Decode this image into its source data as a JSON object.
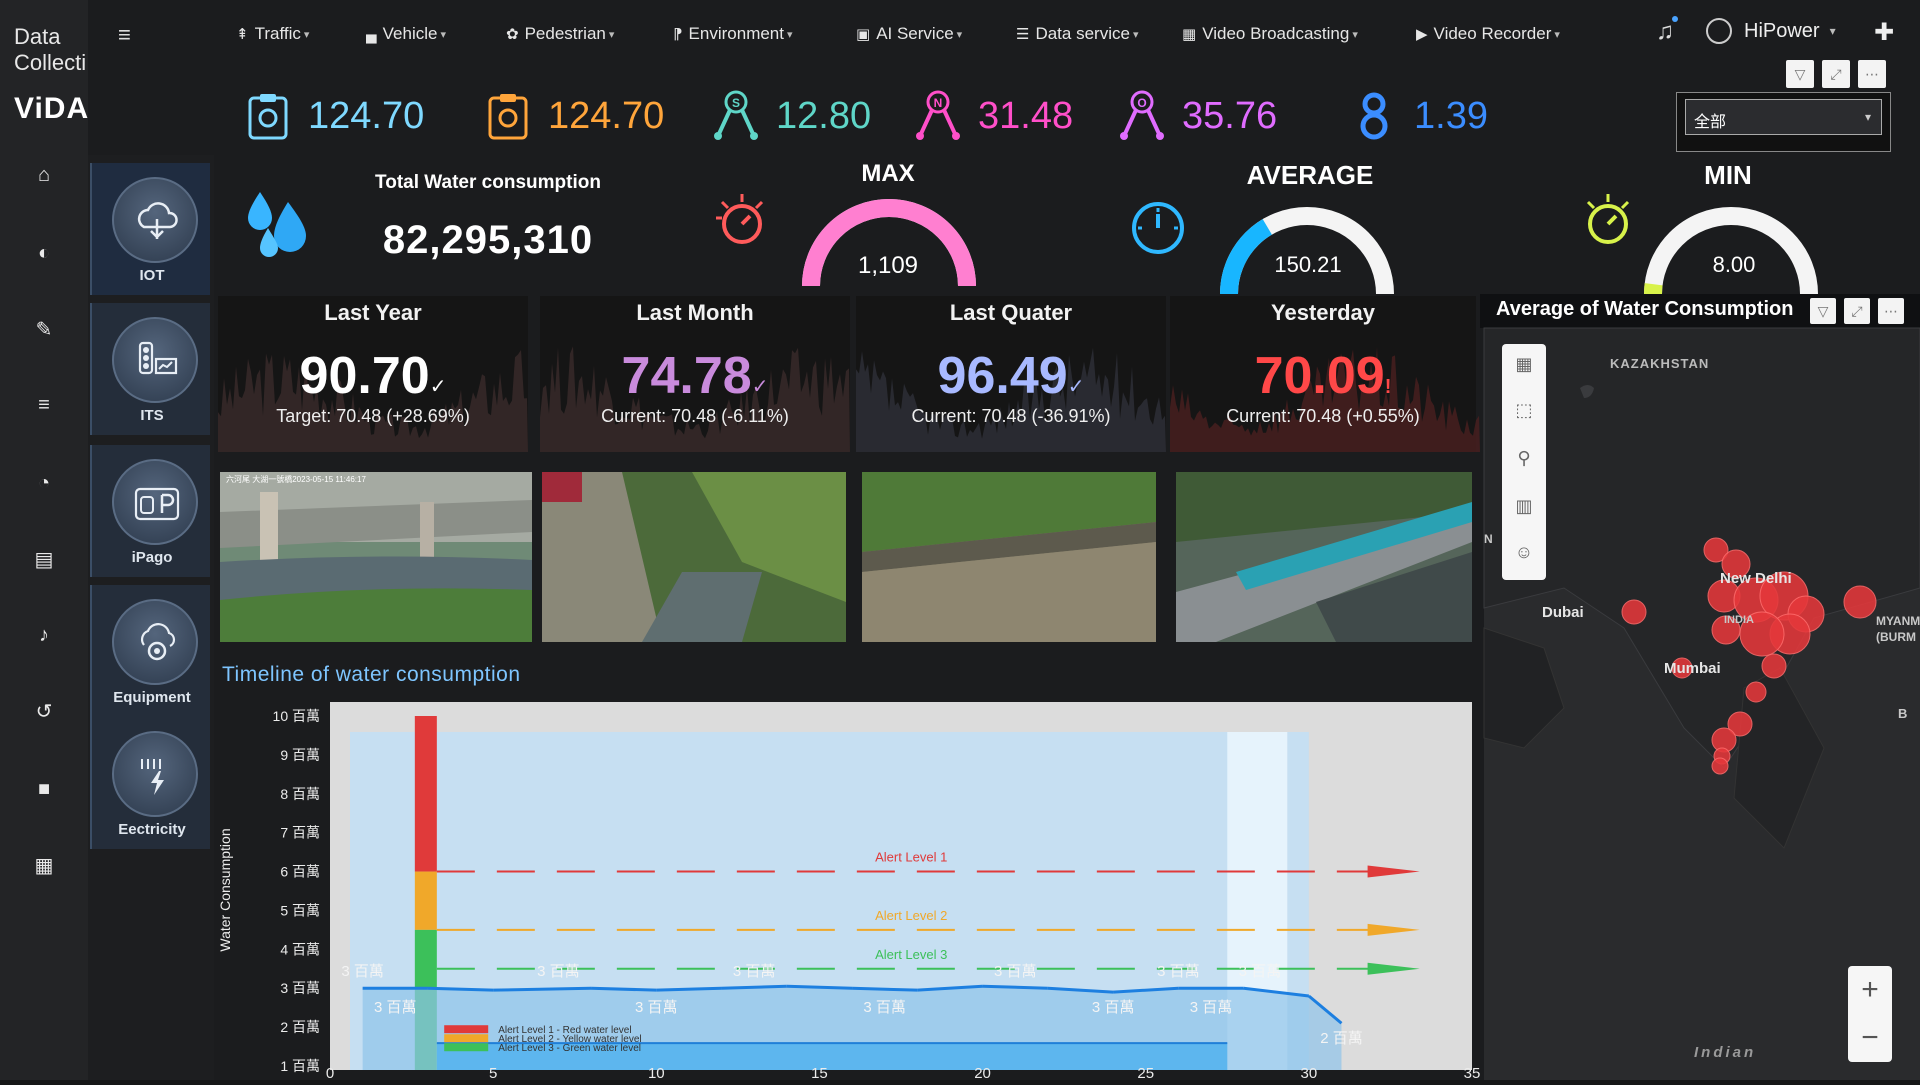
{
  "brand": {
    "line1": "Data",
    "line2": "Collecti",
    "name": "ViDA"
  },
  "nav": [
    {
      "label": "Traffic",
      "icon": "traffic-sign-icon"
    },
    {
      "label": "Vehicle",
      "icon": "car-icon"
    },
    {
      "label": "Pedestrian",
      "icon": "pedestrian-icon"
    },
    {
      "label": "Environment",
      "icon": "environment-icon"
    },
    {
      "label": "AI Service",
      "icon": "ai-chip-icon"
    },
    {
      "label": "Data service",
      "icon": "database-icon"
    },
    {
      "label": "Video Broadcasting",
      "icon": "grid-icon"
    },
    {
      "label": "Video Recorder",
      "icon": "video-icon"
    }
  ],
  "user": {
    "name": "HiPower"
  },
  "categories": [
    {
      "label": "IOT",
      "icon": "iot-cloud-icon"
    },
    {
      "label": "ITS",
      "icon": "traffic-light-icon"
    },
    {
      "label": "iPago",
      "icon": "parking-icon"
    },
    {
      "label": "Equipment",
      "icon": "equipment-gear-icon"
    },
    {
      "label": "Eectricity",
      "icon": "lightning-icon"
    }
  ],
  "metrics": [
    {
      "value": "124.70",
      "color": "#7fd9ff",
      "icon": "clipboard-icon"
    },
    {
      "value": "124.70",
      "color": "#ffa53b",
      "icon": "clipboard-icon"
    },
    {
      "value": "12.80",
      "color": "#5fd6c8",
      "icon": "node-s-icon",
      "letter": "S"
    },
    {
      "value": "31.48",
      "color": "#ff4fc9",
      "icon": "node-n-icon",
      "letter": "N"
    },
    {
      "value": "35.76",
      "color": "#e06cff",
      "icon": "node-o-icon",
      "letter": "O"
    },
    {
      "value": "1.39",
      "color": "#3b8dff",
      "icon": "node-8-icon",
      "letter": ""
    }
  ],
  "dropdown": {
    "value": "全部"
  },
  "total": {
    "title": "Total Water consumption",
    "value": "82,295,310"
  },
  "gauges": [
    {
      "title": "MAX",
      "value": "1,109",
      "fraction": 1.0,
      "color": "#ff7fd0"
    },
    {
      "title": "AVERAGE",
      "value": "150.21",
      "fraction": 0.33,
      "color": "#18b6ff"
    },
    {
      "title": "MIN",
      "value": "8.00",
      "fraction": 0.04,
      "color": "#d8f24a"
    }
  ],
  "stats": [
    {
      "head": "Last Year",
      "value": "90.70",
      "mark": "✓",
      "sub": "Target: 70.48 (+28.69%)",
      "color": "#ffffff"
    },
    {
      "head": "Last Month",
      "value": "74.78",
      "mark": "✓",
      "sub": "Current: 70.48 (-6.11%)",
      "color": "#c98bdc"
    },
    {
      "head": "Last Quater",
      "value": "96.49",
      "mark": "✓",
      "sub": "Current: 70.48 (-36.91%)",
      "color": "#a8b9ff"
    },
    {
      "head": "Yesterday",
      "value": "70.09",
      "mark": "!",
      "sub": "Current: 70.48 (+0.55%)",
      "color": "#ff4848"
    }
  ],
  "cameras": [
    {
      "name": "camera-feed-bridge-gauge",
      "stamp": "六河尾 大湖一號橋2023-05-15 11:46:17"
    },
    {
      "name": "camera-feed-channel-grass",
      "stamp": ""
    },
    {
      "name": "camera-feed-ditch-leaves",
      "stamp": ""
    },
    {
      "name": "camera-feed-blue-bridge",
      "stamp": ""
    }
  ],
  "timeline": {
    "title": "Timeline of water consumption",
    "ylabel": "Water Consumption",
    "yticks": [
      "10 百萬",
      "9 百萬",
      "8 百萬",
      "7 百萬",
      "6 百萬",
      "5 百萬",
      "4 百萬",
      "3 百萬",
      "2 百萬",
      "1 百萬"
    ],
    "xticks": [
      "0",
      "5",
      "10",
      "15",
      "20",
      "25",
      "30",
      "35"
    ],
    "alerts": [
      {
        "label": "Alert Level 1",
        "color": "#e03a3a"
      },
      {
        "label": "Alert Level 2",
        "color": "#f0a82a"
      },
      {
        "label": "Alert Level 3",
        "color": "#3cc05a"
      }
    ],
    "legend": [
      "Alert Level 1 - Red water level",
      "Alert Level 2 - Yellow water level",
      "Alert Level 3 - Green water level"
    ],
    "point_labels_upper": [
      "3 百萬",
      "3 百萬",
      "3 百萬",
      "3 百萬",
      "3 百萬",
      "3 百萬"
    ],
    "point_labels_lower": [
      "3 百萬",
      "3 百萬",
      "3 百萬",
      "3 百萬",
      "3 百萬",
      "2 百萬"
    ]
  },
  "chart_data": {
    "type": "line",
    "title": "Timeline of water consumption",
    "xlabel": "",
    "ylabel": "Water Consumption",
    "x": [
      1,
      3,
      5,
      8,
      10,
      12,
      14,
      16,
      18,
      20,
      22,
      24,
      26,
      28,
      30,
      31
    ],
    "series": [
      {
        "values": [
          3.0,
          3.0,
          2.95,
          3.0,
          2.95,
          3.0,
          3.05,
          3.0,
          2.95,
          3.05,
          3.0,
          2.9,
          3.0,
          3.0,
          2.8,
          2.1
        ]
      }
    ],
    "xlim": [
      0,
      35
    ],
    "ylim": [
      1,
      10
    ],
    "alert_levels": [
      6.0,
      4.5,
      3.5
    ]
  },
  "map": {
    "title": "Average of Water Consumption",
    "labels": [
      {
        "text": "KAZAKHSTAN"
      },
      {
        "text": "Dubai"
      },
      {
        "text": "New Delhi"
      },
      {
        "text": "Mumbai"
      },
      {
        "text": "INDIA"
      },
      {
        "text": "MYANM"
      },
      {
        "text": "(BURM"
      },
      {
        "text": "Indian"
      },
      {
        "text": "B"
      },
      {
        "text": "N"
      }
    ]
  }
}
